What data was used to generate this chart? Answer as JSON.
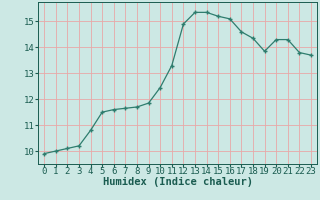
{
  "x": [
    0,
    1,
    2,
    3,
    4,
    5,
    6,
    7,
    8,
    9,
    10,
    11,
    12,
    13,
    14,
    15,
    16,
    17,
    18,
    19,
    20,
    21,
    22,
    23
  ],
  "y": [
    9.9,
    10.0,
    10.1,
    10.2,
    10.8,
    11.5,
    11.6,
    11.65,
    11.7,
    11.85,
    12.45,
    13.3,
    14.9,
    15.35,
    15.35,
    15.2,
    15.1,
    14.6,
    14.35,
    13.85,
    14.3,
    14.3,
    13.8,
    13.7
  ],
  "xlabel": "Humidex (Indice chaleur)",
  "xlim": [
    -0.5,
    23.5
  ],
  "ylim": [
    9.5,
    15.75
  ],
  "yticks": [
    10,
    11,
    12,
    13,
    14,
    15
  ],
  "xticks": [
    0,
    1,
    2,
    3,
    4,
    5,
    6,
    7,
    8,
    9,
    10,
    11,
    12,
    13,
    14,
    15,
    16,
    17,
    18,
    19,
    20,
    21,
    22,
    23
  ],
  "line_color": "#2e7d6e",
  "marker_color": "#2e7d6e",
  "bg_color": "#cce8e4",
  "grid_color": "#e8a8a8",
  "label_color": "#1a5c50",
  "tick_color": "#1a5c50",
  "label_fontsize": 7.5,
  "tick_fontsize": 6.5
}
